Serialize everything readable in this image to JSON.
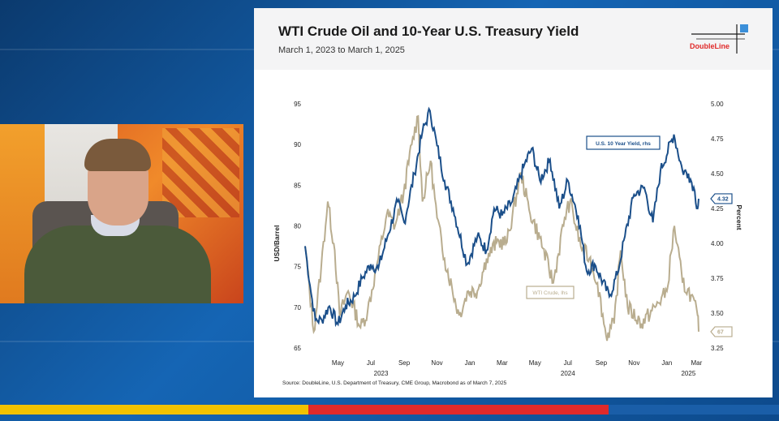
{
  "slide": {
    "title": "WTI Crude Oil and 10-Year U.S. Treasury Yield",
    "subtitle": "March 1, 2023 to March 1, 2025",
    "logo_text": "DoubleLine",
    "source": "Source: DoubleLine, U.S. Department of Treasury, CME Group, Macrobond as of March 7, 2025"
  },
  "colors": {
    "yield_series": "#1b4f8a",
    "crude_series": "#b9ad8f",
    "accent_red": "#e02a2a"
  },
  "chart_data": {
    "type": "line",
    "x_range": [
      "2023-03-01",
      "2025-03-01"
    ],
    "month_ticks": [
      "May",
      "Jul",
      "Sep",
      "Nov",
      "Jan",
      "Mar",
      "May",
      "Jul",
      "Sep",
      "Nov",
      "Jan",
      "Mar"
    ],
    "year_labels": [
      "2023",
      "2024",
      "2025"
    ],
    "ylabel_left": "USD/Barrel",
    "ylabel_right": "Percent",
    "y_left": {
      "min": 65,
      "max": 95,
      "ticks": [
        "95",
        "90",
        "85",
        "80",
        "75",
        "70",
        "65"
      ]
    },
    "y_right": {
      "min": 3.25,
      "max": 5.0,
      "ticks": [
        "5.00",
        "4.75",
        "4.50",
        "4.25",
        "4.00",
        "3.75",
        "3.50",
        "3.25"
      ]
    },
    "series": [
      {
        "name": "U.S. 10 Year Yield, rhs",
        "axis": "right",
        "end_label": "4.32",
        "points": [
          [
            "2023-03-01",
            3.98
          ],
          [
            "2023-03-10",
            3.7
          ],
          [
            "2023-03-20",
            3.45
          ],
          [
            "2023-04-01",
            3.45
          ],
          [
            "2023-04-15",
            3.55
          ],
          [
            "2023-05-01",
            3.42
          ],
          [
            "2023-05-15",
            3.55
          ],
          [
            "2023-06-01",
            3.62
          ],
          [
            "2023-06-15",
            3.75
          ],
          [
            "2023-07-01",
            3.85
          ],
          [
            "2023-07-15",
            3.82
          ],
          [
            "2023-08-01",
            4.05
          ],
          [
            "2023-08-20",
            4.3
          ],
          [
            "2023-09-01",
            4.15
          ],
          [
            "2023-09-20",
            4.5
          ],
          [
            "2023-10-05",
            4.8
          ],
          [
            "2023-10-19",
            4.95
          ],
          [
            "2023-11-01",
            4.7
          ],
          [
            "2023-11-15",
            4.45
          ],
          [
            "2023-12-01",
            4.25
          ],
          [
            "2023-12-27",
            3.85
          ],
          [
            "2024-01-15",
            4.05
          ],
          [
            "2024-02-01",
            3.95
          ],
          [
            "2024-02-15",
            4.25
          ],
          [
            "2024-03-01",
            4.2
          ],
          [
            "2024-03-20",
            4.3
          ],
          [
            "2024-04-10",
            4.55
          ],
          [
            "2024-04-25",
            4.68
          ],
          [
            "2024-05-10",
            4.45
          ],
          [
            "2024-05-29",
            4.6
          ],
          [
            "2024-06-15",
            4.25
          ],
          [
            "2024-07-01",
            4.45
          ],
          [
            "2024-07-20",
            4.2
          ],
          [
            "2024-08-05",
            3.8
          ],
          [
            "2024-08-20",
            3.85
          ],
          [
            "2024-09-16",
            3.62
          ],
          [
            "2024-10-01",
            3.78
          ],
          [
            "2024-10-15",
            4.05
          ],
          [
            "2024-11-01",
            4.35
          ],
          [
            "2024-11-20",
            4.4
          ],
          [
            "2024-12-06",
            4.15
          ],
          [
            "2024-12-20",
            4.52
          ],
          [
            "2025-01-14",
            4.78
          ],
          [
            "2025-01-30",
            4.52
          ],
          [
            "2025-02-10",
            4.5
          ],
          [
            "2025-02-20",
            4.4
          ],
          [
            "2025-02-27",
            4.25
          ],
          [
            "2025-03-01",
            4.32
          ]
        ]
      },
      {
        "name": "WTI Crude, lhs",
        "axis": "left",
        "end_label": "67",
        "points": [
          [
            "2023-03-01",
            77.5
          ],
          [
            "2023-03-17",
            67
          ],
          [
            "2023-03-31",
            75
          ],
          [
            "2023-04-12",
            83
          ],
          [
            "2023-04-25",
            77
          ],
          [
            "2023-05-04",
            69
          ],
          [
            "2023-05-20",
            72
          ],
          [
            "2023-06-12",
            67.5
          ],
          [
            "2023-06-25",
            69.5
          ],
          [
            "2023-07-15",
            76
          ],
          [
            "2023-07-31",
            81.5
          ],
          [
            "2023-08-15",
            80
          ],
          [
            "2023-08-31",
            84
          ],
          [
            "2023-09-15",
            90
          ],
          [
            "2023-09-27",
            93.5
          ],
          [
            "2023-10-05",
            83
          ],
          [
            "2023-10-20",
            88
          ],
          [
            "2023-11-01",
            81
          ],
          [
            "2023-11-15",
            76
          ],
          [
            "2023-12-12",
            69
          ],
          [
            "2023-12-29",
            72
          ],
          [
            "2024-01-15",
            72
          ],
          [
            "2024-02-01",
            76
          ],
          [
            "2024-02-20",
            78
          ],
          [
            "2024-03-10",
            78
          ],
          [
            "2024-04-05",
            86.5
          ],
          [
            "2024-04-20",
            82
          ],
          [
            "2024-05-10",
            78.5
          ],
          [
            "2024-06-04",
            73
          ],
          [
            "2024-06-25",
            81
          ],
          [
            "2024-07-05",
            83
          ],
          [
            "2024-07-25",
            77.5
          ],
          [
            "2024-08-10",
            76
          ],
          [
            "2024-08-25",
            73
          ],
          [
            "2024-09-10",
            66.5
          ],
          [
            "2024-09-25",
            68
          ],
          [
            "2024-10-07",
            77
          ],
          [
            "2024-10-20",
            70
          ],
          [
            "2024-11-15",
            68
          ],
          [
            "2024-12-10",
            70
          ],
          [
            "2025-01-01",
            72
          ],
          [
            "2025-01-15",
            80
          ],
          [
            "2025-01-30",
            73
          ],
          [
            "2025-02-15",
            71.5
          ],
          [
            "2025-02-27",
            69
          ],
          [
            "2025-03-01",
            67
          ]
        ]
      }
    ]
  }
}
